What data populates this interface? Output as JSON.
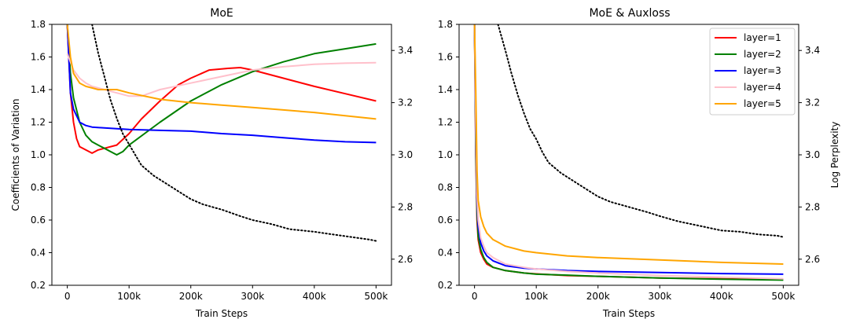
{
  "chart_data": [
    {
      "type": "line",
      "title": "MoE",
      "xlabel": "Train Steps",
      "ylabel": "Coefficients of Variation",
      "y2label": "",
      "xlim": [
        -25000,
        525000
      ],
      "ylim": [
        0.2,
        1.8
      ],
      "y2lim": [
        2.5,
        3.5
      ],
      "xticks": [
        0,
        100000,
        200000,
        300000,
        400000,
        500000
      ],
      "xtick_labels": [
        "0",
        "100k",
        "200k",
        "300k",
        "400k",
        "500k"
      ],
      "yticks": [
        0.2,
        0.4,
        0.6,
        0.8,
        1.0,
        1.2,
        1.4,
        1.6,
        1.8
      ],
      "ytick_labels": [
        "0.2",
        "0.4",
        "0.6",
        "0.8",
        "1.0",
        "1.2",
        "1.4",
        "1.6",
        "1.8"
      ],
      "y2ticks": [
        2.6,
        2.8,
        3.0,
        3.2,
        3.4
      ],
      "y2tick_labels": [
        "2.6",
        "2.8",
        "3.0",
        "3.2",
        "3.4"
      ],
      "legend": null,
      "series": [
        {
          "name": "layer=1",
          "color": "#ff0000",
          "axis": "left",
          "x": [
            0,
            5000,
            10000,
            15000,
            20000,
            30000,
            40000,
            50000,
            60000,
            80000,
            100000,
            120000,
            150000,
            180000,
            200000,
            230000,
            260000,
            280000,
            300000,
            350000,
            400000,
            450000,
            500000
          ],
          "y": [
            1.8,
            1.38,
            1.2,
            1.1,
            1.05,
            1.03,
            1.01,
            1.03,
            1.04,
            1.06,
            1.13,
            1.22,
            1.33,
            1.43,
            1.47,
            1.52,
            1.53,
            1.535,
            1.52,
            1.47,
            1.42,
            1.375,
            1.33
          ]
        },
        {
          "name": "layer=2",
          "color": "#008000",
          "axis": "left",
          "x": [
            0,
            5000,
            10000,
            20000,
            30000,
            40000,
            50000,
            60000,
            70000,
            80000,
            90000,
            100000,
            150000,
            200000,
            250000,
            300000,
            350000,
            400000,
            450000,
            500000
          ],
          "y": [
            1.8,
            1.5,
            1.35,
            1.2,
            1.12,
            1.08,
            1.06,
            1.04,
            1.02,
            1.0,
            1.02,
            1.06,
            1.2,
            1.33,
            1.43,
            1.51,
            1.57,
            1.62,
            1.65,
            1.68
          ]
        },
        {
          "name": "layer=3",
          "color": "#0000ff",
          "axis": "left",
          "x": [
            0,
            5000,
            10000,
            20000,
            30000,
            40000,
            60000,
            80000,
            100000,
            150000,
            200000,
            250000,
            300000,
            350000,
            400000,
            450000,
            500000
          ],
          "y": [
            1.8,
            1.38,
            1.28,
            1.2,
            1.18,
            1.17,
            1.165,
            1.16,
            1.155,
            1.15,
            1.145,
            1.13,
            1.12,
            1.105,
            1.09,
            1.08,
            1.075
          ]
        },
        {
          "name": "layer=4",
          "color": "#ffc0cb",
          "axis": "left",
          "x": [
            0,
            10000,
            20000,
            30000,
            40000,
            50000,
            60000,
            80000,
            100000,
            120000,
            150000,
            200000,
            250000,
            300000,
            350000,
            400000,
            450000,
            500000
          ],
          "y": [
            1.62,
            1.52,
            1.47,
            1.44,
            1.42,
            1.41,
            1.4,
            1.38,
            1.36,
            1.36,
            1.4,
            1.44,
            1.48,
            1.52,
            1.54,
            1.555,
            1.562,
            1.565
          ]
        },
        {
          "name": "layer=5",
          "color": "#ffa500",
          "axis": "left",
          "x": [
            0,
            5000,
            10000,
            20000,
            30000,
            40000,
            50000,
            60000,
            80000,
            100000,
            150000,
            200000,
            250000,
            300000,
            350000,
            400000,
            450000,
            500000
          ],
          "y": [
            1.8,
            1.6,
            1.5,
            1.44,
            1.42,
            1.41,
            1.4,
            1.4,
            1.4,
            1.38,
            1.34,
            1.32,
            1.305,
            1.29,
            1.275,
            1.26,
            1.24,
            1.22
          ]
        },
        {
          "name": "log perplexity",
          "color": "#000000",
          "axis": "right",
          "style": "dotted",
          "x": [
            40000,
            50000,
            60000,
            70000,
            80000,
            90000,
            100000,
            110000,
            120000,
            140000,
            160000,
            180000,
            200000,
            220000,
            250000,
            280000,
            300000,
            330000,
            360000,
            400000,
            430000,
            460000,
            490000,
            500000
          ],
          "y": [
            3.5,
            3.39,
            3.3,
            3.21,
            3.14,
            3.08,
            3.04,
            3.0,
            2.96,
            2.92,
            2.89,
            2.86,
            2.83,
            2.81,
            2.79,
            2.765,
            2.75,
            2.735,
            2.715,
            2.705,
            2.695,
            2.685,
            2.675,
            2.67
          ]
        }
      ]
    },
    {
      "type": "line",
      "title": "MoE & Auxloss",
      "xlabel": "Train Steps",
      "ylabel": "",
      "y2label": "Log Perplexity",
      "xlim": [
        -25000,
        525000
      ],
      "ylim": [
        0.2,
        1.8
      ],
      "y2lim": [
        2.5,
        3.5
      ],
      "xticks": [
        0,
        100000,
        200000,
        300000,
        400000,
        500000
      ],
      "xtick_labels": [
        "0",
        "100k",
        "200k",
        "300k",
        "400k",
        "500k"
      ],
      "yticks": [
        0.2,
        0.4,
        0.6,
        0.8,
        1.0,
        1.2,
        1.4,
        1.6,
        1.8
      ],
      "ytick_labels": [
        "0.2",
        "0.4",
        "0.6",
        "0.8",
        "1.0",
        "1.2",
        "1.4",
        "1.6",
        "1.8"
      ],
      "y2ticks": [
        2.6,
        2.8,
        3.0,
        3.2,
        3.4
      ],
      "y2tick_labels": [
        "2.6",
        "2.8",
        "3.0",
        "3.2",
        "3.4"
      ],
      "legend": {
        "position": "top-right",
        "entries": [
          "layer=1",
          "layer=2",
          "layer=3",
          "layer=4",
          "layer=5"
        ]
      },
      "series": [
        {
          "name": "layer=1",
          "color": "#ff0000",
          "axis": "left",
          "x": [
            0,
            2000,
            4000,
            6000,
            10000,
            15000,
            20000,
            30000,
            50000,
            80000,
            100000,
            150000,
            200000,
            300000,
            400000,
            500000
          ],
          "y": [
            1.8,
            1.0,
            0.6,
            0.48,
            0.4,
            0.36,
            0.33,
            0.31,
            0.29,
            0.275,
            0.27,
            0.26,
            0.255,
            0.245,
            0.24,
            0.235
          ]
        },
        {
          "name": "layer=2",
          "color": "#008000",
          "axis": "left",
          "x": [
            0,
            2000,
            4000,
            6000,
            10000,
            15000,
            20000,
            30000,
            50000,
            80000,
            100000,
            150000,
            200000,
            300000,
            400000,
            500000
          ],
          "y": [
            1.8,
            1.05,
            0.65,
            0.5,
            0.42,
            0.37,
            0.34,
            0.31,
            0.29,
            0.275,
            0.268,
            0.262,
            0.255,
            0.245,
            0.237,
            0.232
          ]
        },
        {
          "name": "layer=3",
          "color": "#0000ff",
          "axis": "left",
          "x": [
            0,
            2000,
            4000,
            6000,
            10000,
            15000,
            20000,
            30000,
            50000,
            80000,
            100000,
            150000,
            200000,
            300000,
            400000,
            500000
          ],
          "y": [
            1.8,
            1.15,
            0.72,
            0.56,
            0.46,
            0.41,
            0.38,
            0.35,
            0.32,
            0.305,
            0.3,
            0.29,
            0.285,
            0.278,
            0.272,
            0.268
          ]
        },
        {
          "name": "layer=4",
          "color": "#ffc0cb",
          "axis": "left",
          "x": [
            0,
            2000,
            4000,
            6000,
            10000,
            15000,
            20000,
            30000,
            50000,
            80000,
            100000,
            150000,
            200000,
            300000,
            400000,
            500000
          ],
          "y": [
            1.8,
            1.2,
            0.76,
            0.6,
            0.49,
            0.44,
            0.4,
            0.37,
            0.33,
            0.31,
            0.3,
            0.285,
            0.275,
            0.26,
            0.25,
            0.24
          ]
        },
        {
          "name": "layer=5",
          "color": "#ffa500",
          "axis": "left",
          "x": [
            0,
            2000,
            4000,
            6000,
            10000,
            15000,
            20000,
            30000,
            50000,
            80000,
            100000,
            150000,
            200000,
            300000,
            400000,
            500000
          ],
          "y": [
            1.8,
            1.4,
            0.9,
            0.72,
            0.62,
            0.56,
            0.52,
            0.48,
            0.44,
            0.41,
            0.4,
            0.38,
            0.37,
            0.355,
            0.34,
            0.33
          ]
        },
        {
          "name": "log perplexity",
          "color": "#000000",
          "axis": "right",
          "style": "dotted",
          "x": [
            38000,
            50000,
            60000,
            70000,
            80000,
            90000,
            100000,
            110000,
            120000,
            140000,
            160000,
            180000,
            200000,
            220000,
            250000,
            280000,
            300000,
            330000,
            360000,
            400000,
            430000,
            460000,
            490000,
            500000
          ],
          "y": [
            3.5,
            3.4,
            3.31,
            3.23,
            3.16,
            3.1,
            3.06,
            3.01,
            2.97,
            2.93,
            2.9,
            2.87,
            2.84,
            2.82,
            2.8,
            2.78,
            2.765,
            2.745,
            2.73,
            2.71,
            2.705,
            2.695,
            2.69,
            2.685
          ]
        }
      ]
    }
  ]
}
